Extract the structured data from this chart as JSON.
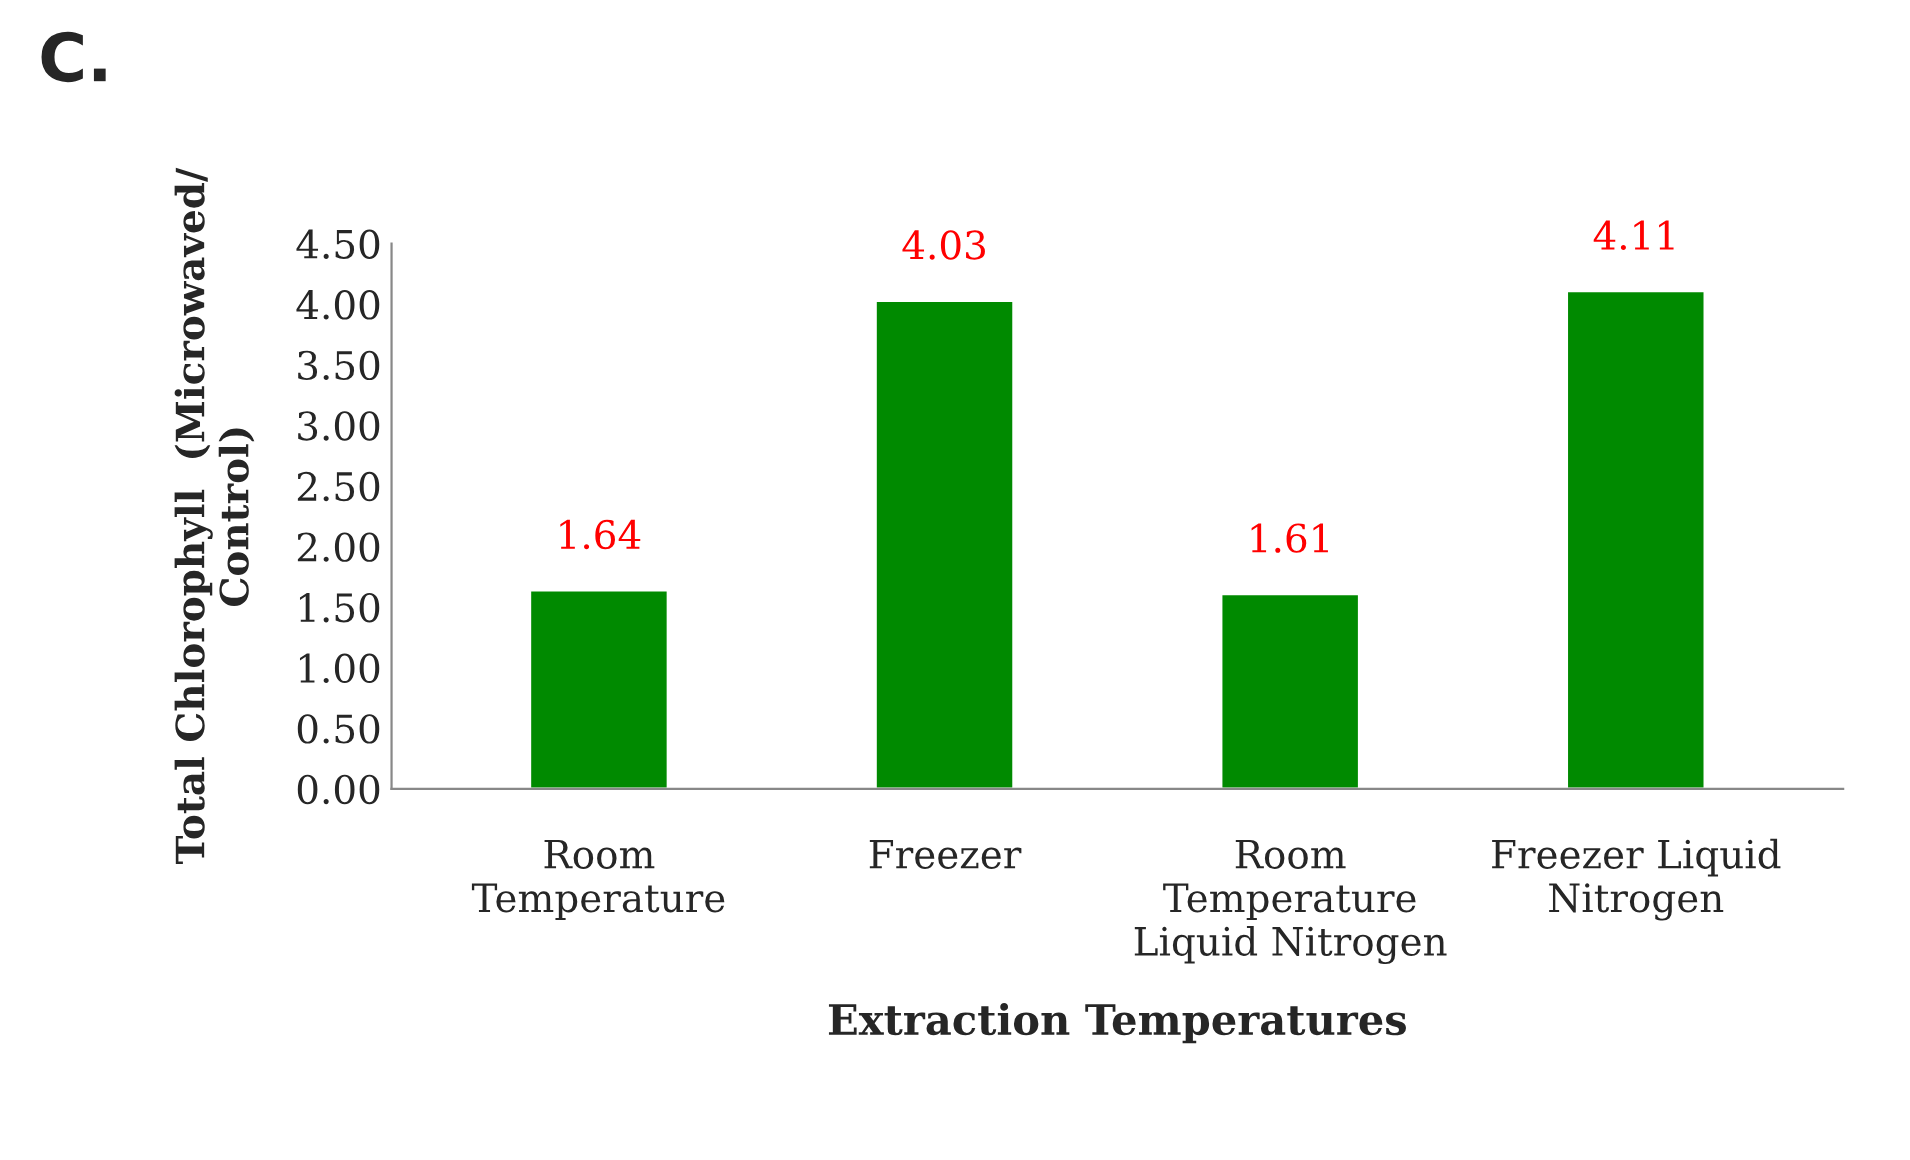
{
  "chart_data": {
    "type": "bar",
    "title": "C.",
    "xlabel": "Extraction Temperatures",
    "ylabel": "Total Chlorophyll  (Microwaved/\nControl)",
    "categories": [
      "Room\nTemperature",
      "Freezer",
      "Room\nTemperature\nLiquid Nitrogen",
      "Freezer Liquid\nNitrogen"
    ],
    "values": [
      1.64,
      4.03,
      1.61,
      4.11
    ],
    "value_labels": [
      "1.64",
      "4.03",
      "1.61",
      "4.11"
    ],
    "color": "#008a00",
    "ylim": [
      0,
      4.5
    ],
    "yticks": [
      {
        "value": 0,
        "label": "0.00"
      },
      {
        "value": 0.5,
        "label": "0.50"
      },
      {
        "value": 1,
        "label": "1.00"
      },
      {
        "value": 1.5,
        "label": "1.50"
      },
      {
        "value": 2,
        "label": "2.00"
      },
      {
        "value": 2.5,
        "label": "2.50"
      },
      {
        "value": 3,
        "label": "3.00"
      },
      {
        "value": 3.5,
        "label": "3.50"
      },
      {
        "value": 4,
        "label": "4.00"
      },
      {
        "value": 4.5,
        "label": "4.50"
      }
    ],
    "grid": false
  }
}
